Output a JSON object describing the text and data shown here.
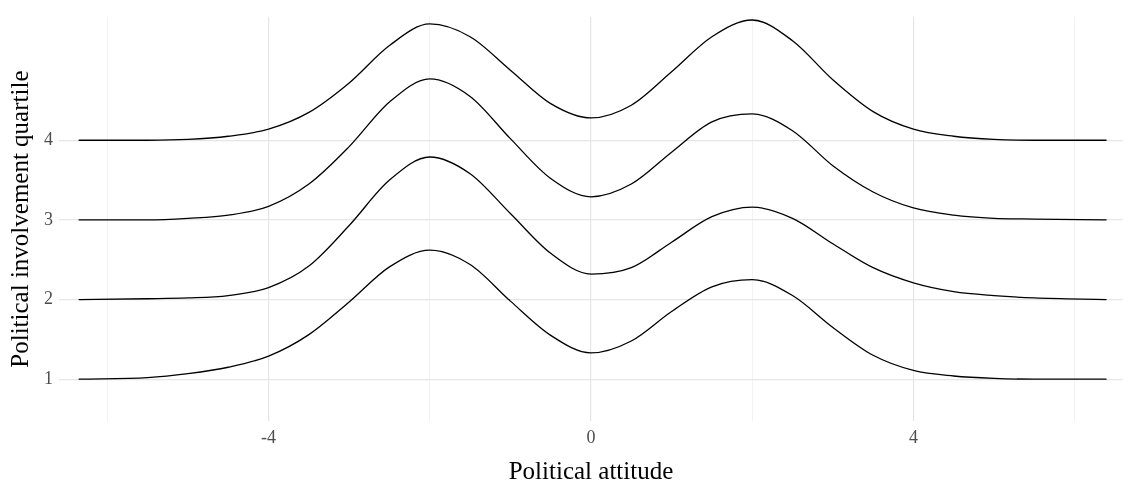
{
  "chart_data": {
    "type": "line",
    "xlabel": "Political attitude",
    "ylabel": "Political involvement quartile",
    "x": [
      -6.35,
      -5.5,
      -5,
      -4.5,
      -4,
      -3.5,
      -3,
      -2.5,
      -2,
      -1.5,
      -1,
      -0.5,
      0,
      0.5,
      1,
      1.5,
      2,
      2.5,
      3,
      3.5,
      4,
      4.5,
      5,
      5.5,
      6.39
    ],
    "series": [
      {
        "color": "#000000",
        "values": [
          1,
          1.02,
          1.07,
          1.15,
          1.29,
          1.56,
          1.97,
          2.41,
          2.62,
          2.44,
          1.98,
          1.55,
          1.33,
          1.48,
          1.85,
          2.16,
          2.25,
          2.05,
          1.65,
          1.3,
          1.11,
          1.04,
          1.01,
          1,
          1
        ]
      },
      {
        "color": "#000000",
        "values": [
          2,
          2.01,
          2.02,
          2.05,
          2.15,
          2.42,
          2.93,
          3.5,
          3.79,
          3.58,
          3.08,
          2.58,
          2.32,
          2.4,
          2.72,
          3.04,
          3.16,
          3.02,
          2.7,
          2.4,
          2.21,
          2.1,
          2.05,
          2.02,
          2
        ]
      },
      {
        "color": "#000000",
        "values": [
          3,
          3,
          3.02,
          3.06,
          3.17,
          3.45,
          3.92,
          4.48,
          4.77,
          4.55,
          4.02,
          3.52,
          3.29,
          3.45,
          3.85,
          4.23,
          4.33,
          4.12,
          3.68,
          3.35,
          3.15,
          3.06,
          3.02,
          3.01,
          3
        ]
      },
      {
        "color": "#000000",
        "values": [
          4,
          4,
          4.01,
          4.05,
          4.14,
          4.35,
          4.72,
          5.19,
          5.46,
          5.3,
          4.88,
          4.46,
          4.28,
          4.44,
          4.86,
          5.3,
          5.51,
          5.25,
          4.76,
          4.36,
          4.14,
          4.05,
          4.01,
          4,
          4
        ]
      }
    ],
    "xlim": [
      -6.6,
      6.6
    ],
    "xticks": [
      {
        "value": -6,
        "label": null
      },
      -4,
      {
        "value": -2,
        "label": null
      },
      0,
      {
        "value": 2,
        "label": null
      },
      4,
      {
        "value": 6,
        "label": null
      }
    ],
    "ylim": [
      0.47,
      5.55
    ],
    "yticks": [
      1,
      2,
      3,
      4
    ],
    "grid": true,
    "legend": false,
    "marker": "none",
    "line_style": "solid"
  }
}
